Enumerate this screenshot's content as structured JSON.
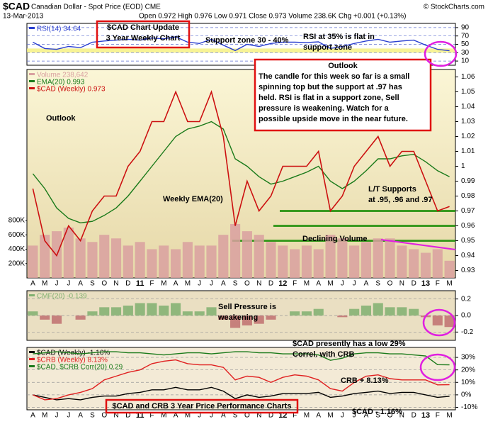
{
  "header": {
    "symbol": "$CAD",
    "name": "Canadian Dollar - Spot Price (EOD) CME",
    "date": "13-Mar-2013",
    "quote": "Open 0.972  High 0.976  Low 0.971  Close 0.973  Volume 238.6K  Chg +0.001 (+0.13%)",
    "credit": "© StockCharts.com"
  },
  "annotations": [
    {
      "lines": [
        "$CAD Chart Update",
        "3 Year Weekly Chart"
      ]
    },
    {
      "lines": [
        "Support zone 30 - 40%"
      ]
    },
    {
      "lines": [
        "RSI at 35% is flat in",
        "support zone"
      ]
    },
    {
      "lines": [
        "Outlook",
        "The candle for this week so far is a small",
        "spinning top but the support at .97 has",
        "held. RSI is flat in a support zone, Sell",
        "pressure is weakening. Watch for a",
        "possible upside move in the near future."
      ]
    },
    {
      "lines": [
        "Outlook"
      ]
    },
    {
      "lines": [
        "Weekly EMA(20)"
      ]
    },
    {
      "lines": [
        "L/T Supports",
        "at .95, .96 and .97"
      ]
    },
    {
      "lines": [
        "Declining Volume"
      ]
    },
    {
      "lines": [
        "Sell Pressure is",
        "weakening"
      ]
    },
    {
      "lines": [
        "$CAD presently has a low 29%",
        "Correl. with CRB"
      ]
    },
    {
      "lines": [
        "CRB + 8.13%"
      ]
    },
    {
      "lines": [
        "$CAD - 1.16%"
      ]
    },
    {
      "lines": [
        "$CAD and CRB 3 Year Price Performance Charts"
      ]
    }
  ],
  "chart_data": [
    {
      "type": "line",
      "ylim": [
        0,
        100
      ],
      "yticks": [
        10,
        30,
        50,
        70,
        90
      ],
      "zone": [
        30,
        40
      ],
      "grid": true,
      "series": [
        {
          "name": "RSI(14) 34.64",
          "color": "#2a3fd0",
          "values": [
            55,
            40,
            38,
            45,
            42,
            55,
            58,
            60,
            62,
            60,
            65,
            63,
            68,
            55,
            52,
            62,
            48,
            35,
            50,
            45,
            52,
            55,
            55,
            54,
            56,
            40,
            45,
            52,
            58,
            62,
            55,
            58,
            60,
            48,
            38,
            34.64
          ]
        }
      ]
    },
    {
      "type": "line",
      "ylim": [
        0.925,
        1.065
      ],
      "yticks": [
        0.93,
        0.94,
        0.95,
        0.96,
        0.97,
        0.98,
        0.99,
        1.0,
        1.01,
        1.02,
        1.03,
        1.04,
        1.05,
        1.06
      ],
      "y2lim": [
        0,
        2900000
      ],
      "y2ticks": [
        {
          "value": 200000,
          "label": "200K"
        },
        {
          "value": 400000,
          "label": "400K"
        },
        {
          "value": 600000,
          "label": "600K"
        },
        {
          "value": 800000,
          "label": "800K"
        }
      ],
      "support_levels": [
        0.97,
        0.96,
        0.95
      ],
      "categories": [
        "A",
        "M",
        "J",
        "J",
        "A",
        "S",
        "O",
        "N",
        "D",
        "11",
        "F",
        "M",
        "A",
        "M",
        "J",
        "J",
        "A",
        "S",
        "O",
        "N",
        "D",
        "12",
        "F",
        "M",
        "A",
        "M",
        "J",
        "J",
        "A",
        "S",
        "O",
        "N",
        "D",
        "13",
        "F",
        "M"
      ],
      "series": [
        {
          "name": "Volume 238,642",
          "color": "#d9a0a0",
          "style": "bar",
          "axis": "y2",
          "values": [
            450000,
            600000,
            650000,
            700000,
            550000,
            500000,
            600000,
            550000,
            450000,
            500000,
            400000,
            450000,
            400000,
            500000,
            450000,
            450000,
            600000,
            750000,
            650000,
            600000,
            500000,
            450000,
            400000,
            450000,
            400000,
            600000,
            550000,
            450000,
            500000,
            550000,
            550000,
            450000,
            400000,
            350000,
            400000,
            238642
          ]
        },
        {
          "name": "EMA(20) 0.993",
          "color": "#1a7a1a",
          "values": [
            0.995,
            0.985,
            0.972,
            0.965,
            0.962,
            0.963,
            0.967,
            0.972,
            0.98,
            0.99,
            1.0,
            1.01,
            1.02,
            1.025,
            1.027,
            1.03,
            1.025,
            1.005,
            1.0,
            0.993,
            0.988,
            0.99,
            0.993,
            0.996,
            1.0,
            0.99,
            0.985,
            0.99,
            0.997,
            1.005,
            1.005,
            1.007,
            1.008,
            1.003,
            0.997,
            0.993
          ]
        },
        {
          "name": "$CAD (Weekly) 0.973",
          "color": "#cc1010",
          "values": [
            0.985,
            0.95,
            0.94,
            0.96,
            0.95,
            0.97,
            0.98,
            0.98,
            1.0,
            1.01,
            1.03,
            1.03,
            1.05,
            1.03,
            1.03,
            1.05,
            1.02,
            0.96,
            0.99,
            0.97,
            0.98,
            1.0,
            1.0,
            1.0,
            1.01,
            0.97,
            0.98,
            1.0,
            1.01,
            1.02,
            1.0,
            1.01,
            1.01,
            0.99,
            0.97,
            0.973
          ]
        }
      ]
    },
    {
      "type": "line",
      "ylim": [
        -0.3,
        0.3
      ],
      "yticks": [
        -0.2,
        {
          "value": 0,
          "label": "0.0"
        },
        0.2
      ],
      "grid": true,
      "series": [
        {
          "name": "CMF(20) -0.139",
          "color": "#80b070",
          "negative_color": "#c07070",
          "style": "bar",
          "values": [
            0.05,
            -0.05,
            -0.1,
            0.0,
            -0.05,
            0.05,
            0.1,
            0.1,
            0.12,
            0.15,
            0.15,
            0.12,
            0.15,
            0.05,
            0.05,
            0.1,
            -0.05,
            -0.15,
            -0.12,
            -0.1,
            -0.05,
            0.0,
            0.05,
            0.05,
            0.08,
            0.0,
            -0.02,
            0.08,
            0.12,
            0.15,
            0.1,
            0.1,
            0.08,
            -0.02,
            -0.12,
            -0.139
          ]
        }
      ]
    },
    {
      "type": "line",
      "ylim": [
        -12,
        38
      ],
      "yticks": [
        {
          "value": -10,
          "label": "-10%"
        },
        {
          "value": 0,
          "label": "0%"
        },
        {
          "value": 10,
          "label": "10%"
        },
        {
          "value": 20,
          "label": "20%"
        },
        {
          "value": 30,
          "label": "30%"
        }
      ],
      "y2lim": [
        -1.8,
        1.1
      ],
      "grid": true,
      "categories": [
        "A",
        "M",
        "J",
        "J",
        "A",
        "S",
        "O",
        "N",
        "D",
        "11",
        "F",
        "M",
        "A",
        "M",
        "J",
        "J",
        "A",
        "S",
        "O",
        "N",
        "D",
        "12",
        "F",
        "M",
        "A",
        "M",
        "J",
        "J",
        "A",
        "S",
        "O",
        "N",
        "D",
        "13",
        "F",
        "M"
      ],
      "series": [
        {
          "name": "$CAD (Weekly) -1.16%",
          "color": "#000000",
          "values": [
            0,
            -2,
            -4,
            -3,
            -4,
            -2,
            -1,
            -1,
            1,
            2,
            4,
            4,
            6,
            4,
            4,
            6,
            3,
            -3,
            0,
            -2,
            -1,
            1,
            1,
            1,
            2,
            -2,
            -1,
            1,
            2,
            3,
            1,
            2,
            2,
            0,
            -2,
            -1.16
          ]
        },
        {
          "name": "$CRB (Weekly) 8.13%",
          "color": "#e02020",
          "values": [
            0,
            -4,
            -3,
            0,
            2,
            5,
            12,
            15,
            18,
            20,
            25,
            27,
            28,
            25,
            24,
            24,
            22,
            12,
            15,
            14,
            10,
            14,
            16,
            15,
            12,
            5,
            3,
            10,
            15,
            16,
            13,
            12,
            12,
            12,
            8,
            8.13
          ]
        },
        {
          "name": "$CAD, $CRB Corr(20) 0.29",
          "color": "#1a7a1a",
          "axis": "y2",
          "values": [
            0.8,
            0.85,
            0.9,
            0.85,
            0.8,
            0.85,
            0.9,
            0.9,
            0.85,
            0.85,
            0.8,
            0.75,
            0.8,
            0.85,
            0.85,
            0.8,
            0.85,
            0.9,
            0.9,
            0.85,
            0.85,
            0.8,
            0.8,
            0.8,
            0.75,
            0.5,
            0.6,
            0.8,
            0.85,
            0.85,
            0.8,
            0.8,
            0.75,
            0.7,
            0.3,
            0.29
          ]
        }
      ]
    }
  ]
}
